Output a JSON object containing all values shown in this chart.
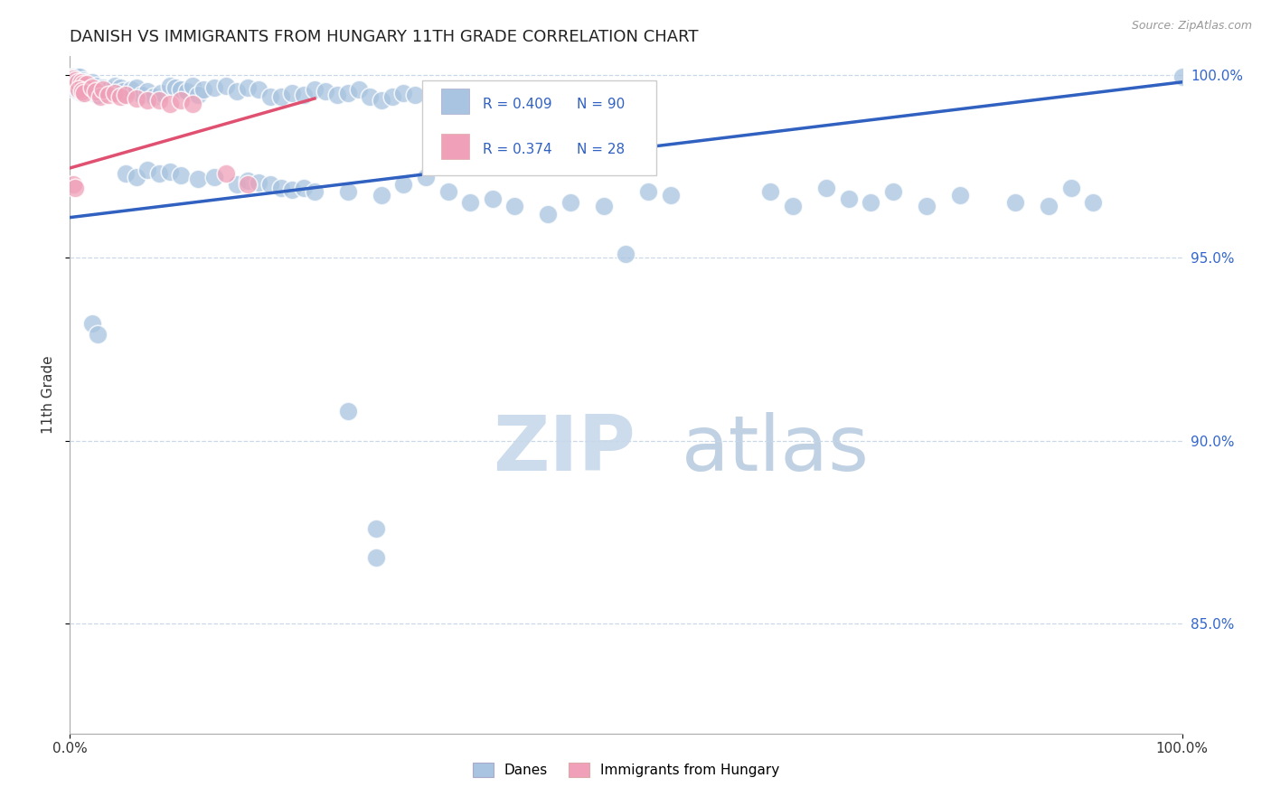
{
  "title": "DANISH VS IMMIGRANTS FROM HUNGARY 11TH GRADE CORRELATION CHART",
  "source_text": "Source: ZipAtlas.com",
  "ylabel": "11th Grade",
  "background_color": "#ffffff",
  "grid_color": "#c8d8e8",
  "danes_color": "#a8c4e0",
  "immig_color": "#f0a0b8",
  "danes_line_color": "#3060c0",
  "immig_line_color": "#e05070",
  "y_ticks": [
    0.85,
    0.9,
    0.95,
    1.0
  ],
  "xlim": [
    0.0,
    1.0
  ],
  "ylim": [
    0.82,
    1.005
  ],
  "danes_line": [
    [
      0.0,
      0.961
    ],
    [
      1.0,
      0.998
    ]
  ],
  "immig_line": [
    [
      0.0,
      0.9745
    ],
    [
      0.22,
      0.9935
    ]
  ],
  "danes_pts": [
    [
      0.003,
      0.9995
    ],
    [
      0.005,
      0.9995
    ],
    [
      0.007,
      0.9995
    ],
    [
      0.009,
      0.9995
    ],
    [
      0.012,
      0.9985
    ],
    [
      0.014,
      0.998
    ],
    [
      0.016,
      0.9975
    ],
    [
      0.018,
      0.9975
    ],
    [
      0.02,
      0.998
    ],
    [
      0.023,
      0.997
    ],
    [
      0.005,
      0.996
    ],
    [
      0.008,
      0.9955
    ],
    [
      0.011,
      0.995
    ],
    [
      0.015,
      0.996
    ],
    [
      0.018,
      0.9955
    ],
    [
      0.021,
      0.995
    ],
    [
      0.025,
      0.9945
    ],
    [
      0.03,
      0.9965
    ],
    [
      0.035,
      0.996
    ],
    [
      0.04,
      0.997
    ],
    [
      0.045,
      0.9965
    ],
    [
      0.048,
      0.9955
    ],
    [
      0.055,
      0.996
    ],
    [
      0.06,
      0.9965
    ],
    [
      0.065,
      0.9945
    ],
    [
      0.07,
      0.9955
    ],
    [
      0.075,
      0.994
    ],
    [
      0.082,
      0.995
    ],
    [
      0.09,
      0.997
    ],
    [
      0.095,
      0.9965
    ],
    [
      0.1,
      0.996
    ],
    [
      0.105,
      0.9955
    ],
    [
      0.11,
      0.997
    ],
    [
      0.115,
      0.9945
    ],
    [
      0.12,
      0.996
    ],
    [
      0.13,
      0.9965
    ],
    [
      0.14,
      0.997
    ],
    [
      0.15,
      0.9955
    ],
    [
      0.16,
      0.9965
    ],
    [
      0.17,
      0.996
    ],
    [
      0.18,
      0.994
    ],
    [
      0.19,
      0.994
    ],
    [
      0.2,
      0.995
    ],
    [
      0.21,
      0.9945
    ],
    [
      0.22,
      0.996
    ],
    [
      0.23,
      0.9955
    ],
    [
      0.24,
      0.9945
    ],
    [
      0.25,
      0.995
    ],
    [
      0.26,
      0.996
    ],
    [
      0.27,
      0.994
    ],
    [
      0.28,
      0.993
    ],
    [
      0.29,
      0.994
    ],
    [
      0.3,
      0.995
    ],
    [
      0.31,
      0.9945
    ],
    [
      0.05,
      0.973
    ],
    [
      0.06,
      0.972
    ],
    [
      0.07,
      0.974
    ],
    [
      0.08,
      0.973
    ],
    [
      0.09,
      0.9735
    ],
    [
      0.1,
      0.9725
    ],
    [
      0.115,
      0.9715
    ],
    [
      0.13,
      0.972
    ],
    [
      0.15,
      0.97
    ],
    [
      0.16,
      0.971
    ],
    [
      0.17,
      0.9705
    ],
    [
      0.18,
      0.97
    ],
    [
      0.19,
      0.969
    ],
    [
      0.2,
      0.9685
    ],
    [
      0.21,
      0.969
    ],
    [
      0.22,
      0.968
    ],
    [
      0.25,
      0.968
    ],
    [
      0.28,
      0.967
    ],
    [
      0.3,
      0.97
    ],
    [
      0.32,
      0.972
    ],
    [
      0.34,
      0.968
    ],
    [
      0.36,
      0.965
    ],
    [
      0.38,
      0.966
    ],
    [
      0.4,
      0.964
    ],
    [
      0.43,
      0.962
    ],
    [
      0.45,
      0.965
    ],
    [
      0.48,
      0.964
    ],
    [
      0.5,
      0.951
    ],
    [
      0.52,
      0.968
    ],
    [
      0.54,
      0.967
    ],
    [
      0.63,
      0.968
    ],
    [
      0.65,
      0.964
    ],
    [
      0.68,
      0.969
    ],
    [
      0.7,
      0.966
    ],
    [
      0.72,
      0.965
    ],
    [
      0.74,
      0.968
    ],
    [
      0.77,
      0.964
    ],
    [
      0.8,
      0.967
    ],
    [
      0.85,
      0.965
    ],
    [
      0.88,
      0.964
    ],
    [
      0.9,
      0.969
    ],
    [
      0.92,
      0.965
    ],
    [
      0.02,
      0.932
    ],
    [
      0.025,
      0.929
    ],
    [
      0.25,
      0.908
    ],
    [
      0.275,
      0.876
    ],
    [
      0.275,
      0.868
    ],
    [
      1.0,
      0.9995
    ]
  ],
  "immig_pts": [
    [
      0.003,
      0.999
    ],
    [
      0.005,
      0.9985
    ],
    [
      0.007,
      0.998
    ],
    [
      0.01,
      0.998
    ],
    [
      0.012,
      0.9975
    ],
    [
      0.015,
      0.9975
    ],
    [
      0.018,
      0.996
    ],
    [
      0.008,
      0.996
    ],
    [
      0.011,
      0.9955
    ],
    [
      0.013,
      0.995
    ],
    [
      0.02,
      0.9965
    ],
    [
      0.023,
      0.9955
    ],
    [
      0.027,
      0.994
    ],
    [
      0.03,
      0.996
    ],
    [
      0.035,
      0.9945
    ],
    [
      0.04,
      0.995
    ],
    [
      0.045,
      0.994
    ],
    [
      0.05,
      0.9945
    ],
    [
      0.06,
      0.9935
    ],
    [
      0.07,
      0.993
    ],
    [
      0.08,
      0.993
    ],
    [
      0.09,
      0.992
    ],
    [
      0.1,
      0.993
    ],
    [
      0.11,
      0.992
    ],
    [
      0.14,
      0.973
    ],
    [
      0.16,
      0.97
    ],
    [
      0.003,
      0.97
    ],
    [
      0.005,
      0.969
    ]
  ]
}
